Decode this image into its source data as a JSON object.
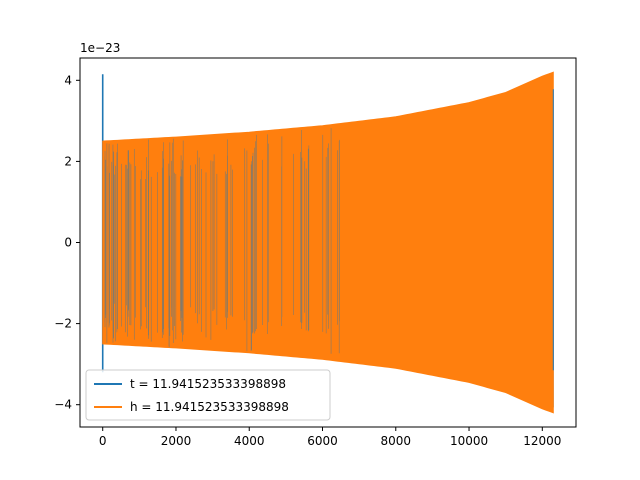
{
  "chart_data": {
    "type": "line",
    "title": "",
    "xlabel": "",
    "ylabel": "",
    "offset_label": "1e−23",
    "xlim": [
      -620,
      12920
    ],
    "ylim": [
      -4.55,
      4.55
    ],
    "x_ticks": [
      0,
      2000,
      4000,
      6000,
      8000,
      10000,
      12000
    ],
    "x_tick_labels": [
      "0",
      "2000",
      "4000",
      "6000",
      "8000",
      "10000",
      "12000"
    ],
    "y_ticks": [
      -4,
      -2,
      0,
      2,
      4
    ],
    "y_tick_labels": [
      "−4",
      "−2",
      "0",
      "2",
      "4"
    ],
    "grid": false,
    "legend": {
      "placement": "lower-left"
    },
    "x_end": 12300,
    "series": [
      {
        "name": "t = 11.941523533398898",
        "color": "#1f77b4",
        "spike_x": 0,
        "spike_range": [
          -3.2,
          4.15
        ],
        "envelope": [
          [
            0,
            2.5
          ],
          [
            2000,
            2.6
          ],
          [
            4000,
            2.72
          ],
          [
            6000,
            2.88
          ],
          [
            8000,
            3.1
          ],
          [
            10000,
            3.45
          ],
          [
            11000,
            3.7
          ],
          [
            12000,
            4.1
          ],
          [
            12300,
            4.2
          ]
        ]
      },
      {
        "name": "h = 11.941523533398898",
        "color": "#ff7f0e",
        "envelope": [
          [
            0,
            2.5
          ],
          [
            2000,
            2.6
          ],
          [
            4000,
            2.72
          ],
          [
            6000,
            2.88
          ],
          [
            8000,
            3.1
          ],
          [
            10000,
            3.45
          ],
          [
            11000,
            3.7
          ],
          [
            12000,
            4.1
          ],
          [
            12300,
            4.2
          ]
        ]
      }
    ]
  }
}
